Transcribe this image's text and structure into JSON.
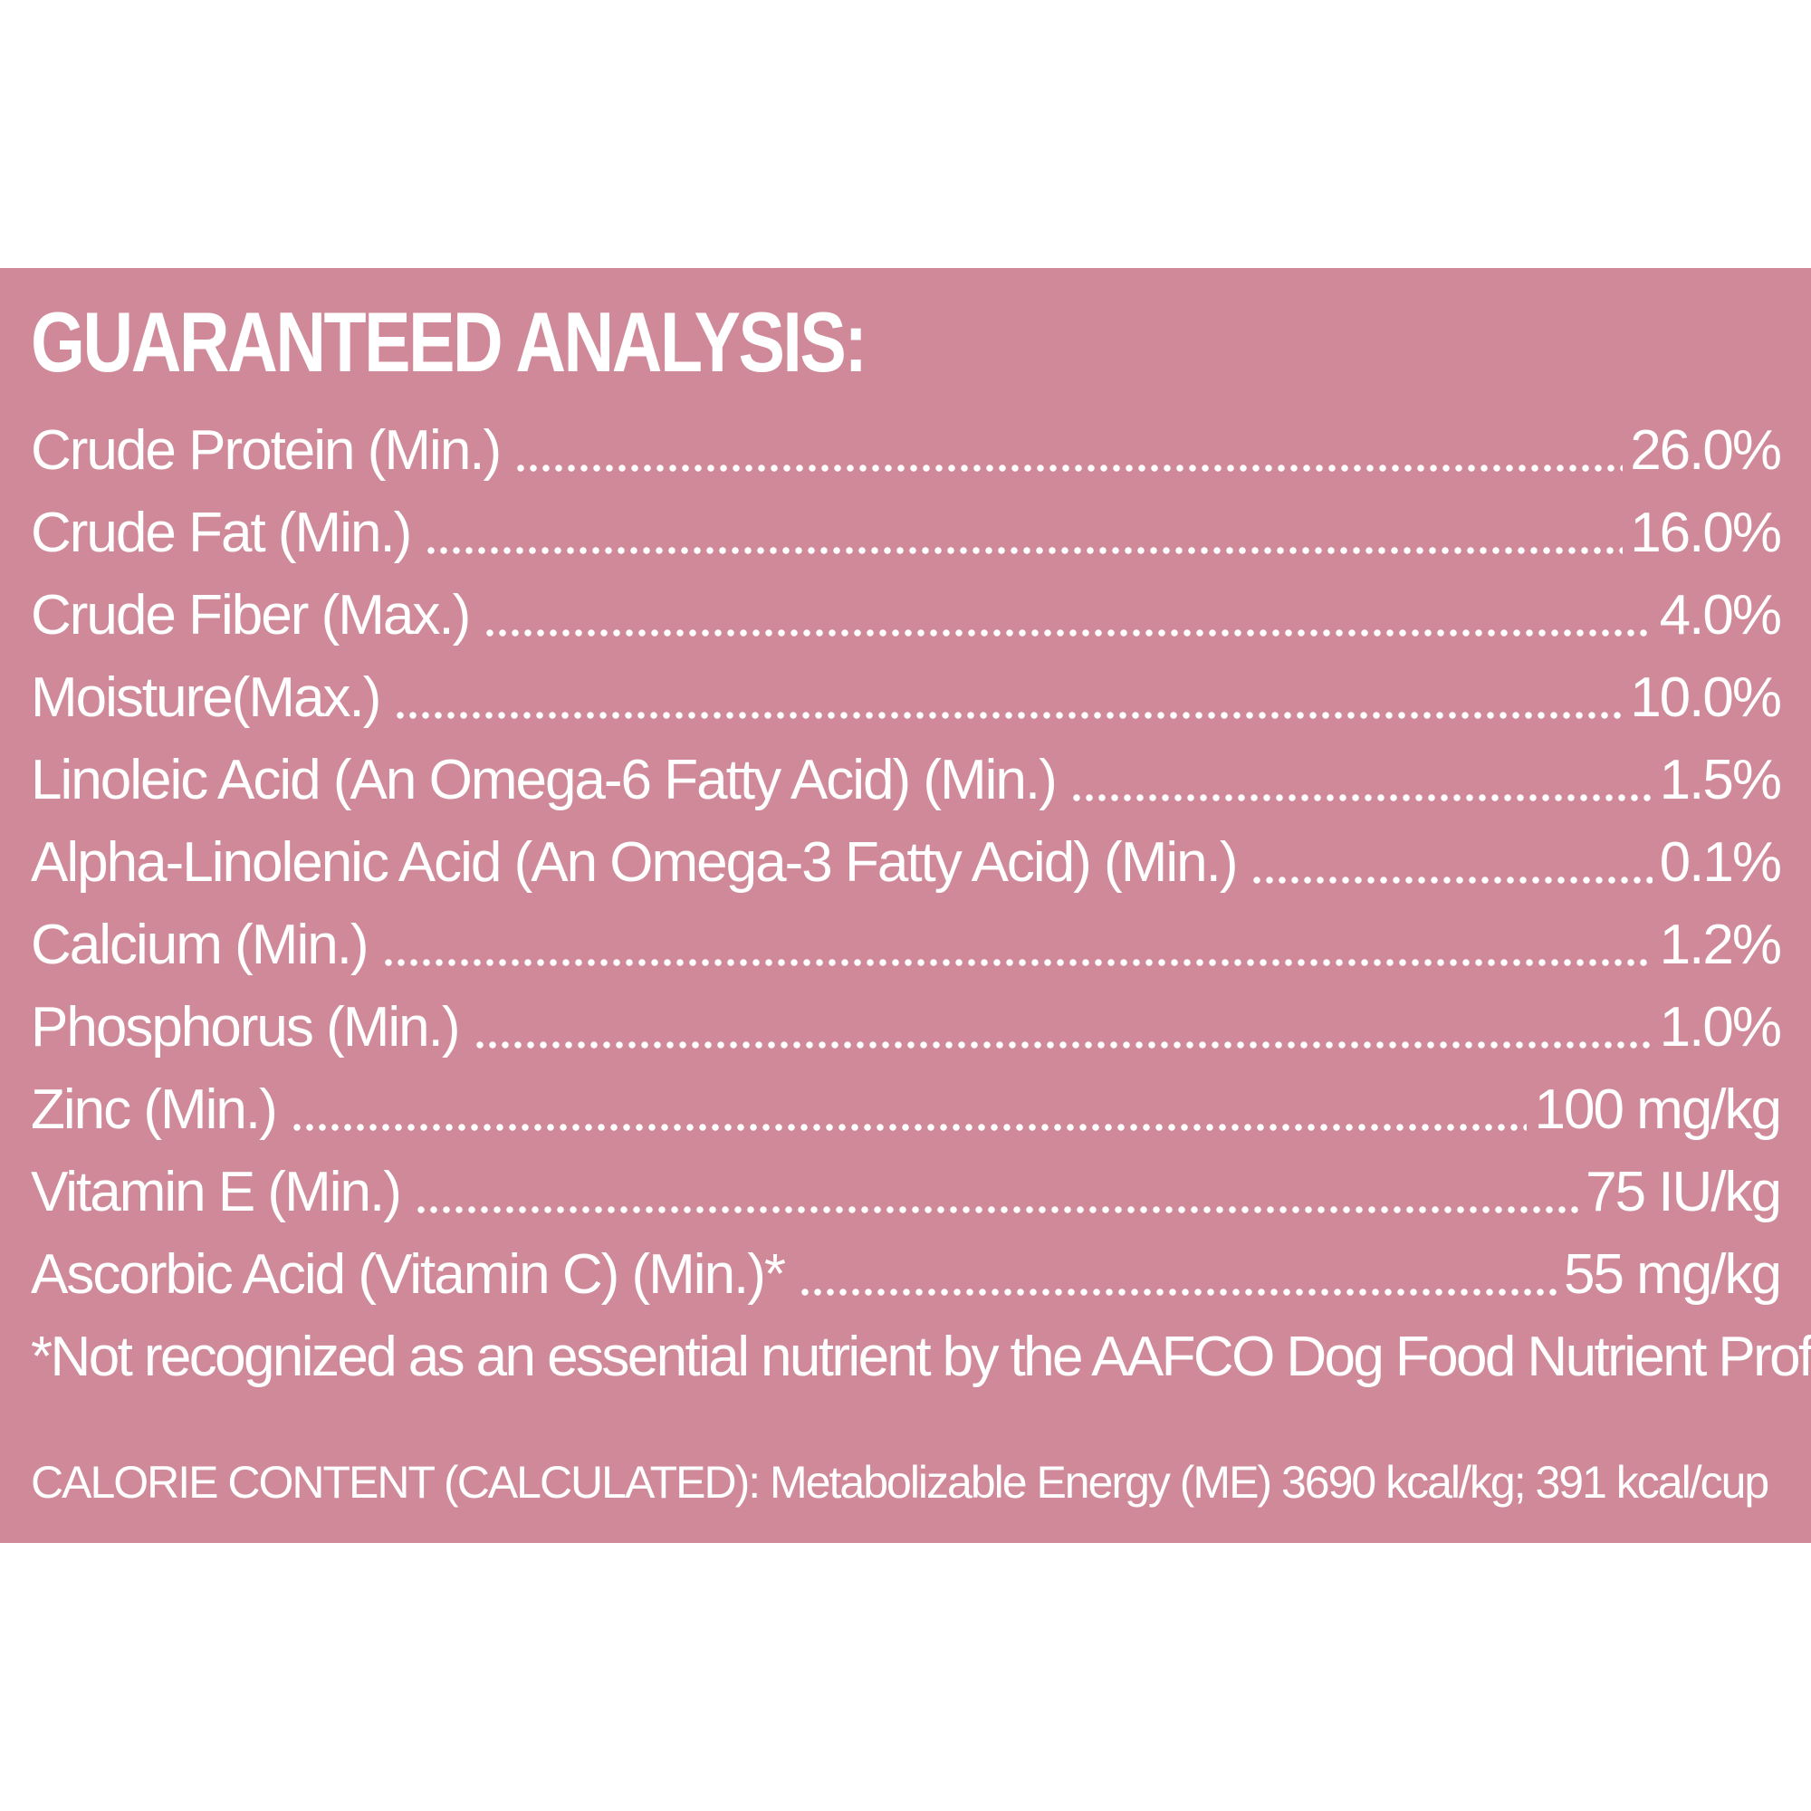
{
  "colors": {
    "panel_background": "#cf8998",
    "text": "#ffffff",
    "page_background": "#ffffff"
  },
  "title": "GUARANTEED ANALYSIS:",
  "rows": [
    {
      "label": "Crude Protein (Min.)",
      "value": "26.0%"
    },
    {
      "label": "Crude Fat (Min.)",
      "value": "16.0%"
    },
    {
      "label": "Crude Fiber (Max.)",
      "value": "4.0%"
    },
    {
      "label": "Moisture(Max.)",
      "value": "10.0%"
    },
    {
      "label": "Linoleic Acid (An Omega-6 Fatty Acid) (Min.)",
      "value": "1.5%"
    },
    {
      "label": "Alpha-Linolenic Acid (An Omega-3 Fatty Acid) (Min.)",
      "value": "0.1%"
    },
    {
      "label": "Calcium (Min.)",
      "value": "1.2%"
    },
    {
      "label": "Phosphorus (Min.)",
      "value": "1.0%"
    },
    {
      "label": "Zinc (Min.)",
      "value": "100 mg/kg"
    },
    {
      "label": "Vitamin E (Min.)",
      "value": "75 IU/kg"
    },
    {
      "label": "Ascorbic Acid (Vitamin C) (Min.)*",
      "value": "55 mg/kg"
    }
  ],
  "footnote": "*Not recognized as an essential nutrient by the AAFCO Dog Food Nutrient Profiles",
  "calorie_content": "CALORIE CONTENT (CALCULATED): Metabolizable Energy (ME) 3690 kcal/kg; 391 kcal/cup"
}
